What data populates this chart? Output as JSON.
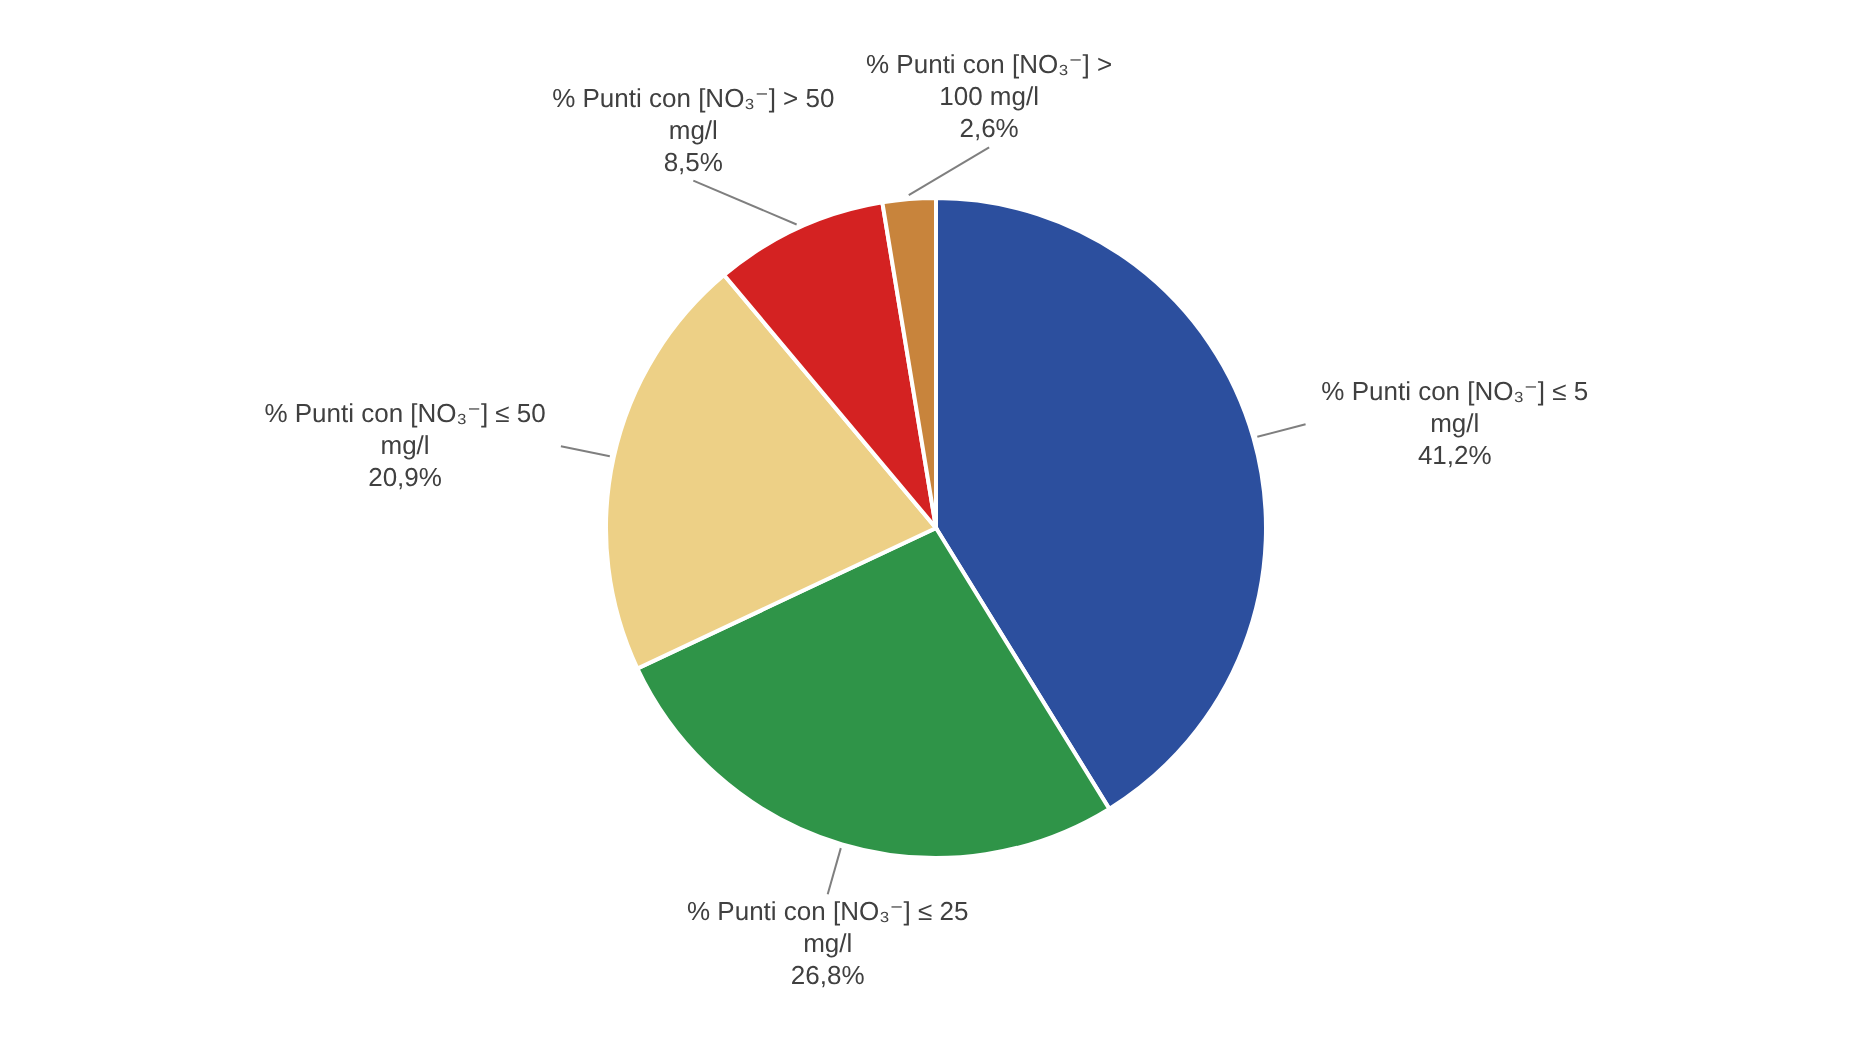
{
  "chart_data": {
    "type": "pie",
    "categories": [
      "% Punti con [NO₃⁻] ≤ 5 mg/l",
      "% Punti con [NO₃⁻] ≤ 25 mg/l",
      "% Punti con [NO₃⁻] ≤ 50 mg/l",
      "% Punti con [NO₃⁻] > 50 mg/l",
      "% Punti con [NO₃⁻] > 100 mg/l"
    ],
    "values": [
      41.2,
      26.8,
      20.9,
      8.5,
      2.6
    ],
    "colors": [
      "#2c4f9e",
      "#2f9448",
      "#edd086",
      "#d42222",
      "#c8843c"
    ],
    "value_labels": [
      "41,2%",
      "26,8%",
      "20,9%",
      "8,5%",
      "2,6%"
    ]
  }
}
